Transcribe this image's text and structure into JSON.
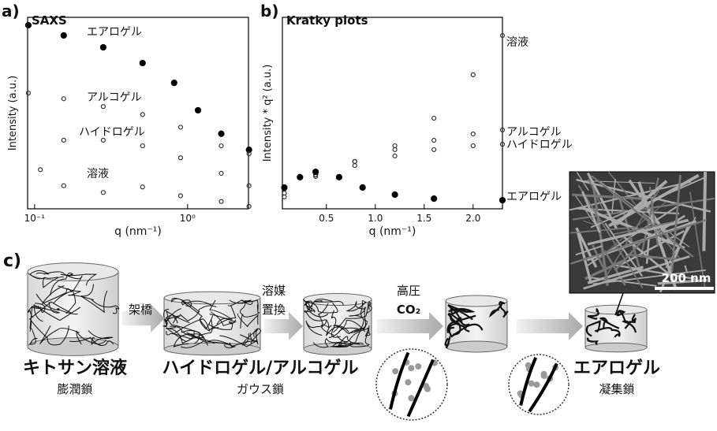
{
  "chart_data": [
    {
      "type": "scatter",
      "label": "a)",
      "title": "SAXS",
      "x_label": "q (nm⁻¹)",
      "y_label": "Intensity (a.u.)",
      "xscale": "log",
      "yscale": "log",
      "xlim": [
        0.09,
        2.5
      ],
      "ylim": [
        1,
        1000
      ],
      "xticks": [
        {
          "value": 0.1,
          "label": "10⁻¹"
        },
        {
          "value": 1,
          "label": "10⁰"
        }
      ],
      "series": [
        {
          "name": "エアロゲル",
          "color": "#000000",
          "filled": true,
          "x": [
            0.091,
            0.155,
            0.281,
            0.508,
            0.817,
            1.17,
            1.66,
            2.52
          ],
          "values": [
            753,
            520,
            339,
            192,
            94,
            35,
            15,
            8.4
          ]
        },
        {
          "name": "アルコゲル",
          "color": "#333333",
          "filled": false,
          "x": [
            0.091,
            0.155,
            0.281,
            0.508,
            0.9,
            1.66,
            2.52
          ],
          "values": [
            65,
            53,
            40,
            30,
            19,
            9.7,
            7.3
          ]
        },
        {
          "name": "ハイドロゲル",
          "color": "#333333",
          "filled": false,
          "x": [
            0.155,
            0.281,
            0.508,
            0.9,
            1.66,
            2.52
          ],
          "values": [
            11.9,
            11.9,
            9.7,
            6.3,
            3.6,
            2.3
          ]
        },
        {
          "name": "溶液",
          "color": "#333333",
          "filled": false,
          "x": [
            0.109,
            0.155,
            0.281,
            0.508,
            0.9,
            1.66,
            2.52
          ],
          "values": [
            4.1,
            2.3,
            1.8,
            2.2,
            1.6,
            1.3,
            1.09
          ]
        }
      ]
    },
    {
      "type": "scatter",
      "label": "b)",
      "title": "Kratky plots",
      "x_label": "q (nm⁻¹)",
      "y_label": "Intensity * q² (a.u.)",
      "xlim": [
        0.05,
        2.3
      ],
      "ylim": [
        0,
        100
      ],
      "xticks": [
        0.5,
        {
          "value": 1,
          "label": "1.0"
        },
        1.5,
        {
          "value": 2,
          "label": "2.0"
        }
      ],
      "series": [
        {
          "name": "溶液",
          "color": "#333333",
          "filled": false,
          "x": [
            0.07,
            0.39,
            0.79,
            1.2,
            1.6,
            2.0,
            2.3
          ],
          "values": [
            10.3,
            17.7,
            24.7,
            32.9,
            47.3,
            70,
            90.5
          ]
        },
        {
          "name": "アルコゲル",
          "color": "#333333",
          "filled": false,
          "x": [
            0.07,
            0.39,
            0.79,
            1.2,
            1.6,
            2.0,
            2.3
          ],
          "values": [
            8.2,
            17.7,
            24.7,
            30.9,
            35.8,
            39.1,
            41.2
          ]
        },
        {
          "name": "ハイドロゲル",
          "color": "#333333",
          "filled": false,
          "x": [
            0.07,
            0.39,
            0.79,
            1.2,
            1.6,
            2.0,
            2.3
          ],
          "values": [
            6.2,
            16.9,
            22.6,
            27.6,
            30.9,
            32.9,
            33.7
          ]
        },
        {
          "name": "エアロゲル",
          "color": "#000000",
          "filled": true,
          "x": [
            0.07,
            0.23,
            0.39,
            0.63,
            0.87,
            1.2,
            1.6,
            2.3
          ],
          "values": [
            11.1,
            16.5,
            19.3,
            16.5,
            11.1,
            7.4,
            5.3,
            4.5
          ]
        }
      ]
    }
  ],
  "diagram": {
    "label": "c)",
    "stage1": "キトサン溶液",
    "stage1_sub": "膨潤鎖",
    "step1": "架橋",
    "stage2": "ハイドロゲル/アルコゲル",
    "stage2_sub": "ガウス鎖",
    "step2": [
      "溶媒",
      "置換"
    ],
    "step3": [
      "高圧",
      "CO₂"
    ],
    "stage3": "エアロゲル",
    "stage3_sub": "凝集鎖",
    "scale_bar": "200 nm"
  }
}
